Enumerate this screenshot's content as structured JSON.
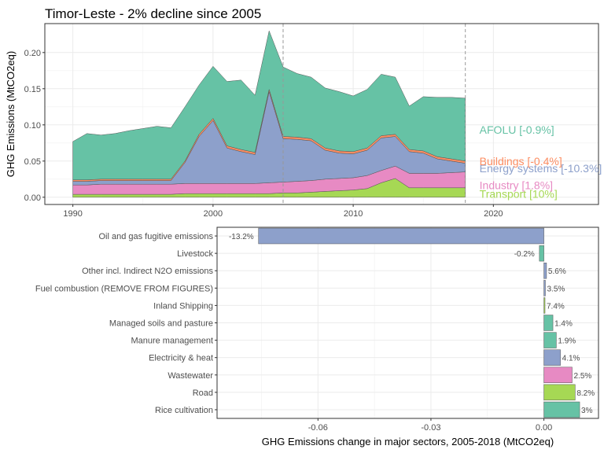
{
  "chart_data": [
    {
      "type": "area",
      "stacked": true,
      "title": "Timor-Leste - 2% decline since 2005",
      "xlabel": "",
      "ylabel": "GHG Emissions (MtCO2eq)",
      "xlim": [
        1988,
        2027.5
      ],
      "ylim": [
        -0.01,
        0.24
      ],
      "xticks": [
        "1990",
        "2000",
        "2010",
        "2020"
      ],
      "yticks": [
        "0.00",
        "0.05",
        "0.10",
        "0.15",
        "0.20"
      ],
      "xtick_values": [
        1990,
        2000,
        2010,
        2020
      ],
      "ytick_values": [
        0,
        0.05,
        0.1,
        0.15,
        0.2
      ],
      "reference_lines_x": [
        2005,
        2018
      ],
      "grid": true,
      "x": [
        1990,
        1991,
        1992,
        1993,
        1994,
        1995,
        1996,
        1997,
        1998,
        1999,
        2000,
        2001,
        2002,
        2003,
        2004,
        2005,
        2006,
        2007,
        2008,
        2009,
        2010,
        2011,
        2012,
        2013,
        2014,
        2015,
        2016,
        2017,
        2018
      ],
      "series": [
        {
          "name": "Transport [10%]",
          "color": "#a6d854",
          "values": [
            0.004,
            0.004,
            0.004,
            0.004,
            0.004,
            0.004,
            0.004,
            0.004,
            0.005,
            0.005,
            0.005,
            0.005,
            0.005,
            0.005,
            0.005,
            0.006,
            0.006,
            0.007,
            0.008,
            0.009,
            0.01,
            0.012,
            0.02,
            0.026,
            0.013,
            0.013,
            0.013,
            0.013,
            0.013
          ]
        },
        {
          "name": "Industry [1.8%]",
          "color": "#e78ac3",
          "values": [
            0.013,
            0.013,
            0.014,
            0.014,
            0.014,
            0.014,
            0.014,
            0.014,
            0.014,
            0.014,
            0.014,
            0.014,
            0.014,
            0.014,
            0.015,
            0.015,
            0.016,
            0.016,
            0.017,
            0.017,
            0.017,
            0.018,
            0.017,
            0.017,
            0.02,
            0.02,
            0.02,
            0.021,
            0.022
          ]
        },
        {
          "name": "Energy systems [-10.3%]",
          "color": "#8da0cb",
          "values": [
            0.005,
            0.005,
            0.005,
            0.005,
            0.005,
            0.005,
            0.005,
            0.005,
            0.029,
            0.065,
            0.087,
            0.049,
            0.044,
            0.04,
            0.126,
            0.06,
            0.058,
            0.055,
            0.04,
            0.035,
            0.033,
            0.035,
            0.045,
            0.041,
            0.03,
            0.028,
            0.02,
            0.016,
            0.012
          ]
        },
        {
          "name": "Buildings [-0.4%]",
          "color": "#fc8d62",
          "values": [
            0.002,
            0.002,
            0.002,
            0.002,
            0.002,
            0.002,
            0.002,
            0.002,
            0.002,
            0.003,
            0.003,
            0.003,
            0.003,
            0.003,
            0.003,
            0.003,
            0.003,
            0.003,
            0.003,
            0.003,
            0.003,
            0.003,
            0.003,
            0.003,
            0.003,
            0.003,
            0.003,
            0.003,
            0.003
          ]
        },
        {
          "name": "AFOLU [-0.9%]",
          "color": "#66c2a5",
          "values": [
            0.053,
            0.064,
            0.061,
            0.063,
            0.067,
            0.07,
            0.073,
            0.071,
            0.075,
            0.068,
            0.072,
            0.089,
            0.096,
            0.079,
            0.081,
            0.096,
            0.088,
            0.085,
            0.083,
            0.082,
            0.077,
            0.081,
            0.085,
            0.079,
            0.06,
            0.075,
            0.082,
            0.085,
            0.087
          ]
        }
      ]
    },
    {
      "type": "bar",
      "orientation": "horizontal",
      "xlabel": "GHG Emissions change in major sectors, 2005-2018 (MtCO2eq)",
      "ylabel": "",
      "xlim": [
        -0.0868,
        0.0145
      ],
      "xticks": [
        "-0.06",
        "-0.03",
        "0.00"
      ],
      "xtick_values": [
        -0.06,
        -0.03,
        0.0
      ],
      "grid": true,
      "categories": [
        "Oil and gas fugitive emissions",
        "Livestock",
        "Other incl. Indirect N2O emissions",
        "Fuel combustion (REMOVE FROM FIGURES)",
        "Inland Shipping",
        "Managed soils and pasture",
        "Manure management",
        "Electricity & heat",
        "Wastewater",
        "Road",
        "Rice cultivation"
      ],
      "values": [
        -0.0758,
        -0.0012,
        0.0007,
        0.0004,
        0.0003,
        0.0024,
        0.0033,
        0.0044,
        0.0075,
        0.0083,
        0.0095
      ],
      "labels": [
        "-13.2%",
        "-0.2%",
        "5.6%",
        "3.5%",
        "7.4%",
        "1.4%",
        "1.9%",
        "4.1%",
        "2.5%",
        "8.2%",
        "3%"
      ],
      "colors": [
        "#8da0cb",
        "#66c2a5",
        "#8da0cb",
        "#8da0cb",
        "#a6d854",
        "#66c2a5",
        "#66c2a5",
        "#8da0cb",
        "#e78ac3",
        "#a6d854",
        "#66c2a5"
      ]
    }
  ]
}
